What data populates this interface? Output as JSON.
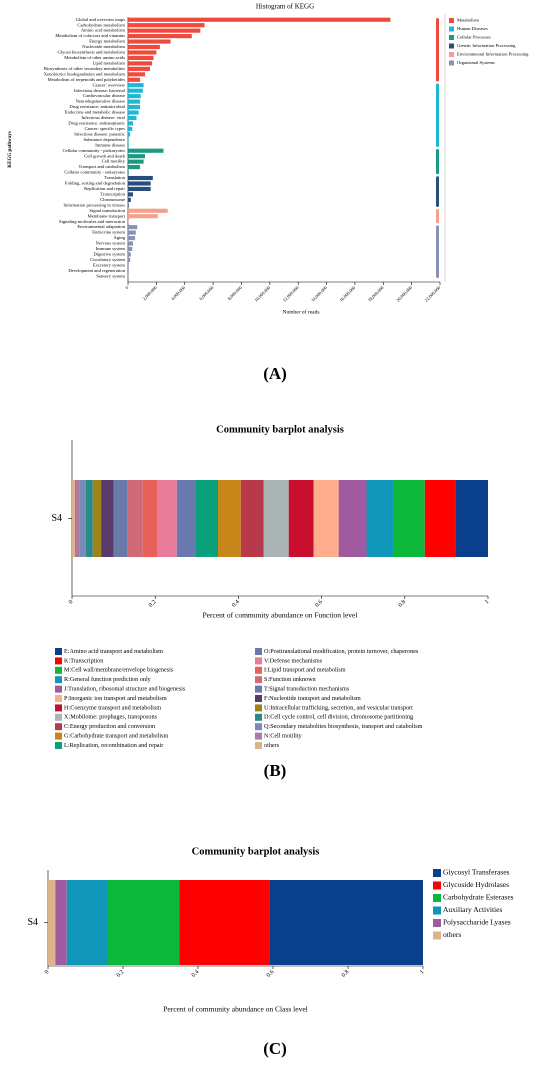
{
  "chart_data": [
    {
      "type": "grouped_hbar",
      "title": "Histogram of KEGG",
      "panel_label": "(A)",
      "x_label": "Number of reads",
      "y_label": "KEGG pathways",
      "xlim": [
        0,
        22000000
      ],
      "xticks": [
        0,
        {
          "value": 2000000,
          "label": "2,000,000"
        },
        {
          "value": 4000000,
          "label": "4,000,000"
        },
        {
          "value": 6000000,
          "label": "6,000,000"
        },
        {
          "value": 8000000,
          "label": "8,000,000"
        },
        {
          "value": 10000000,
          "label": "10,000,000"
        },
        {
          "value": 12000000,
          "label": "12,000,000"
        },
        {
          "value": 14000000,
          "label": "14,000,000"
        },
        {
          "value": 16000000,
          "label": "16,000,000"
        },
        {
          "value": 18000000,
          "label": "18,000,000"
        },
        {
          "value": 20000000,
          "label": "20,000,000"
        },
        {
          "value": 22000000,
          "label": "22,000,000"
        }
      ],
      "series": [
        {
          "name": "Metabolism",
          "color": "#f04a3c",
          "categories": [
            "Global and overview maps",
            "Carbohydrate metabolism",
            "Amino acid metabolism",
            "Metabolism of cofactors and vitamins",
            "Energy metabolism",
            "Nucleotide metabolism",
            "Glycan biosynthesis and metabolism",
            "Metabolism of other amino acids",
            "Lipid metabolism",
            "Biosynthesis of other secondary metabolites",
            "Xenobiotics biodegradation and metabolism",
            "Metabolism of terpenoids and polyketides"
          ],
          "values": [
            18500000,
            5400000,
            5100000,
            4500000,
            3000000,
            2250000,
            2000000,
            1800000,
            1700000,
            1550000,
            1200000,
            850000
          ]
        },
        {
          "name": "Human Diseases",
          "color": "#1fb8d4",
          "categories": [
            "Cancer: overview",
            "Infectious disease: bacterial",
            "Cardiovascular disease",
            "Neurodegenerative disease",
            "Drug resistance: antimicrobial",
            "Endocrine and metabolic disease",
            "Infectious disease: viral",
            "Drug resistance: antineoplastic",
            "Cancer: specific types",
            "Infectious disease: parasitic",
            "Substance dependence",
            "Immune disease"
          ],
          "values": [
            1100000,
            1050000,
            900000,
            850000,
            850000,
            750000,
            600000,
            350000,
            300000,
            150000,
            50000,
            50000
          ]
        },
        {
          "name": "Cellular Processes",
          "color": "#1a9a82",
          "categories": [
            "Cellular community - prokaryotes",
            "Cell growth and death",
            "Cell motility",
            "Transport and catabolism",
            "Cellular community - eukaryotes"
          ],
          "values": [
            2500000,
            1200000,
            1100000,
            850000,
            50000
          ]
        },
        {
          "name": "Genetic Information Processing",
          "color": "#274f7e",
          "categories": [
            "Translation",
            "Folding, sorting and degradation",
            "Replication and repair",
            "Transcription",
            "Chromosome",
            "Information processing in viruses"
          ],
          "values": [
            1750000,
            1600000,
            1600000,
            350000,
            200000,
            50000
          ]
        },
        {
          "name": "Environmental Information Processing",
          "color": "#f4a08a",
          "categories": [
            "Signal transduction",
            "Membrane transport",
            "Signaling molecules and interaction"
          ],
          "values": [
            2800000,
            2100000,
            50000
          ]
        },
        {
          "name": "Organismal Systems",
          "color": "#8793b6",
          "categories": [
            "Environmental adaptation",
            "Endocrine system",
            "Aging",
            "Nervous system",
            "Immune system",
            "Digestive system",
            "Circulatory system",
            "Excretory system",
            "Development and regeneration",
            "Sensory system"
          ],
          "values": [
            650000,
            550000,
            500000,
            350000,
            300000,
            200000,
            150000,
            50000,
            50000,
            20000
          ]
        }
      ]
    },
    {
      "type": "stacked_hbar",
      "title": "Community barplot analysis",
      "panel_label": "(B)",
      "x_label": "Percent of community abundance on Function level",
      "categories": [
        "S4"
      ],
      "xlim": [
        0,
        1
      ],
      "xticks": [
        0,
        0.2,
        0.4,
        0.6,
        0.8,
        1
      ],
      "series": [
        {
          "name": "E:Amino acid transport and metabolism",
          "color": "#0a3f8c",
          "values": [
            0.077
          ]
        },
        {
          "name": "K:Transcription",
          "color": "#ff0000",
          "values": [
            0.075
          ]
        },
        {
          "name": "M:Cell wall/membrane/envelope biogenesis",
          "color": "#0cb83a",
          "values": [
            0.075
          ]
        },
        {
          "name": "R:General function prediction only",
          "color": "#0f96b8",
          "values": [
            0.065
          ]
        },
        {
          "name": "J:Translation, ribosomal structure and biogenesis",
          "color": "#a05aa0",
          "values": [
            0.067
          ]
        },
        {
          "name": "P:Inorganic ion transport and metabolism",
          "color": "#ffad8c",
          "values": [
            0.06
          ]
        },
        {
          "name": "H:Coenzyme transport and metabolism",
          "color": "#c8102e",
          "values": [
            0.06
          ]
        },
        {
          "name": "X:Mobilome: prophages, transposons",
          "color": "#aab4b4",
          "values": [
            0.06
          ]
        },
        {
          "name": "C:Energy production and conversion",
          "color": "#b83a4a",
          "values": [
            0.055
          ]
        },
        {
          "name": "G:Carbohydrate transport and metabolism",
          "color": "#c8861a",
          "values": [
            0.055
          ]
        },
        {
          "name": "L:Replication, recombination and repair",
          "color": "#0aa07c",
          "values": [
            0.053
          ]
        },
        {
          "name": "O:Posttranslational modification, protein turnover, chaperones",
          "color": "#6a78b0",
          "values": [
            0.046
          ]
        },
        {
          "name": "V:Defense mechanisms",
          "color": "#e87a9a",
          "values": [
            0.046
          ]
        },
        {
          "name": "I:Lipid transport and metabolism",
          "color": "#e8605a",
          "values": [
            0.036
          ]
        },
        {
          "name": "S:Function unknown",
          "color": "#d06a78",
          "values": [
            0.036
          ]
        },
        {
          "name": "T:Signal transduction mechanisms",
          "color": "#6a7aa8",
          "values": [
            0.034
          ]
        },
        {
          "name": "F:Nucleotide transport and metabolism",
          "color": "#5a3a6a",
          "values": [
            0.03
          ]
        },
        {
          "name": "U:Intracellular trafficking, secretion, and vesicular transport",
          "color": "#a0821a",
          "values": [
            0.02
          ]
        },
        {
          "name": "D:Cell cycle control, cell division, chromosome partitioning",
          "color": "#2a8a8a",
          "values": [
            0.017
          ]
        },
        {
          "name": "Q:Secondary metabolites biosynthesis, transport and catabolism",
          "color": "#7a8ab8",
          "values": [
            0.014
          ]
        },
        {
          "name": "N:Cell motility",
          "color": "#b07aa0",
          "values": [
            0.012
          ]
        },
        {
          "name": "others",
          "color": "#dcb48c",
          "values": [
            0.007
          ]
        }
      ]
    },
    {
      "type": "stacked_hbar",
      "title": "Community barplot analysis",
      "panel_label": "(C)",
      "x_label": "Percent of community abundance on Class level",
      "categories": [
        "S4"
      ],
      "xlim": [
        0,
        1
      ],
      "xticks": [
        0,
        0.2,
        0.4,
        0.6,
        0.8,
        1
      ],
      "series": [
        {
          "name": "Glycosyl Transferases",
          "color": "#0a3f8c",
          "values": [
            0.41
          ]
        },
        {
          "name": "Glycoside Hydrolases",
          "color": "#ff0000",
          "values": [
            0.24
          ]
        },
        {
          "name": "Carbohydrate Esterases",
          "color": "#0cb83a",
          "values": [
            0.19
          ]
        },
        {
          "name": "Auxiliary Activities",
          "color": "#0f96b8",
          "values": [
            0.11
          ]
        },
        {
          "name": "Polysaccharide Lyases",
          "color": "#a05aa0",
          "values": [
            0.03
          ]
        },
        {
          "name": "others",
          "color": "#dcb48c",
          "values": [
            0.02
          ]
        }
      ]
    }
  ]
}
